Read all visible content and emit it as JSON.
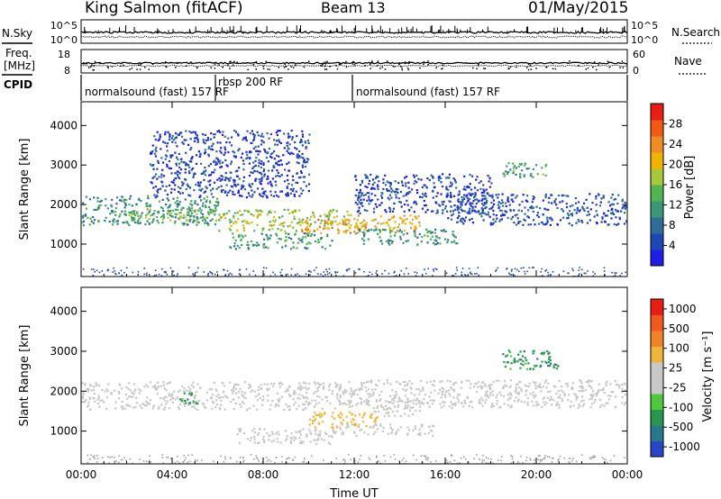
{
  "header": {
    "station": "King Salmon (fitACF)",
    "beam": "Beam 13",
    "date": "01/May/2015"
  },
  "noise_panel": {
    "left_label": "N.Sky",
    "right_label": "N.Search",
    "ticks_left": [
      "10^5",
      "10^0"
    ],
    "ticks_right": [
      "10^5",
      "10^0"
    ]
  },
  "freq_panel": {
    "left_label_1": "Freq.",
    "left_label_2": "[MHz]",
    "right_label": "Nave",
    "ticks_left": [
      "18",
      "8"
    ],
    "ticks_right": [
      "60",
      "0"
    ]
  },
  "cpid": {
    "label": "CPID",
    "segments": [
      {
        "label": "normalsound (fast) 157 RF",
        "start_h": 0,
        "end_h": 5.9
      },
      {
        "label": "rbsp 200 RF",
        "start_h": 5.9,
        "end_h": 11.9
      },
      {
        "label": "normalsound (fast) 157 RF",
        "start_h": 11.9,
        "end_h": 24
      }
    ]
  },
  "xaxis": {
    "title": "Time UT",
    "ticks": [
      "00:00",
      "04:00",
      "08:00",
      "12:00",
      "16:00",
      "20:00",
      "00:00"
    ]
  },
  "power_colorbar": {
    "title": "Power [dB]",
    "ticks": [
      "4",
      "8",
      "12",
      "16",
      "20",
      "24",
      "28"
    ],
    "colors": [
      "#1e1ee6",
      "#1e46b4",
      "#2e6e96",
      "#3c9678",
      "#50b450",
      "#a8c83c",
      "#f0b400",
      "#f08c28",
      "#f05a14",
      "#e61e14"
    ]
  },
  "velocity_colorbar": {
    "title": "Velocity [m s⁻¹]",
    "ticks": [
      "1000",
      "500",
      "100",
      "25",
      "-25",
      "-100",
      "-500",
      "-1000"
    ],
    "colors": [
      "#2846c8",
      "#28788c",
      "#289650",
      "#50c83c",
      "#c8c8c8",
      "#c8c8c8",
      "#f0b43c",
      "#f08228",
      "#f05a1e",
      "#e61e14"
    ]
  },
  "chart_data": [
    {
      "type": "heatmap",
      "name": "power",
      "ylabel": "Slant Range [km]",
      "xlabel": "Time UT",
      "xlim": [
        0,
        24
      ],
      "ylim": [
        180,
        4600
      ],
      "yticks": [
        1000,
        2000,
        3000,
        4000
      ],
      "xticks_h": [
        0,
        4,
        8,
        12,
        16,
        20,
        24
      ],
      "colorbar_range": [
        0,
        30
      ],
      "patches": [
        {
          "t": [
            0,
            6
          ],
          "r": [
            1500,
            2250
          ],
          "value": 10
        },
        {
          "t": [
            2,
            6
          ],
          "r": [
            1550,
            1900
          ],
          "value": 14
        },
        {
          "t": [
            6,
            12
          ],
          "r": [
            1350,
            1900
          ],
          "value": 16
        },
        {
          "t": [
            9.5,
            12.5
          ],
          "r": [
            1300,
            1650
          ],
          "value": 22
        },
        {
          "t": [
            12,
            15
          ],
          "r": [
            1350,
            1750
          ],
          "value": 20
        },
        {
          "t": [
            6.5,
            11
          ],
          "r": [
            900,
            1300
          ],
          "value": 11
        },
        {
          "t": [
            12,
            16.5
          ],
          "r": [
            1000,
            1400
          ],
          "value": 10
        },
        {
          "t": [
            3,
            10
          ],
          "r": [
            2200,
            3900
          ],
          "value": 4
        },
        {
          "t": [
            12,
            18
          ],
          "r": [
            1800,
            2800
          ],
          "value": 4
        },
        {
          "t": [
            16,
            24
          ],
          "r": [
            1500,
            2300
          ],
          "value": 5
        },
        {
          "t": [
            18.5,
            20.5
          ],
          "r": [
            2700,
            3100
          ],
          "value": 12
        }
      ]
    },
    {
      "type": "heatmap",
      "name": "velocity",
      "ylabel": "Slant Range [km]",
      "xlabel": "Time UT",
      "xlim": [
        0,
        24
      ],
      "ylim": [
        180,
        4600
      ],
      "yticks": [
        1000,
        2000,
        3000,
        4000
      ],
      "xticks_h": [
        0,
        4,
        8,
        12,
        16,
        20,
        24
      ],
      "colorbar_range": [
        -1000,
        1000
      ],
      "patches": [
        {
          "t": [
            0,
            12
          ],
          "r": [
            1550,
            2250
          ],
          "value": 0
        },
        {
          "t": [
            12,
            24
          ],
          "r": [
            1600,
            2300
          ],
          "value": 0
        },
        {
          "t": [
            4.3,
            5.2
          ],
          "r": [
            1700,
            2000
          ],
          "value": -500
        },
        {
          "t": [
            10,
            13
          ],
          "r": [
            1100,
            1500
          ],
          "value": 300
        },
        {
          "t": [
            12.5,
            15
          ],
          "r": [
            1400,
            1800
          ],
          "value": -100
        },
        {
          "t": [
            6.8,
            11
          ],
          "r": [
            700,
            1100
          ],
          "value": 100
        },
        {
          "t": [
            11,
            15.5
          ],
          "r": [
            900,
            1200
          ],
          "value": 100
        },
        {
          "t": [
            18.5,
            21
          ],
          "r": [
            2550,
            3050
          ],
          "value": -500
        }
      ]
    }
  ]
}
